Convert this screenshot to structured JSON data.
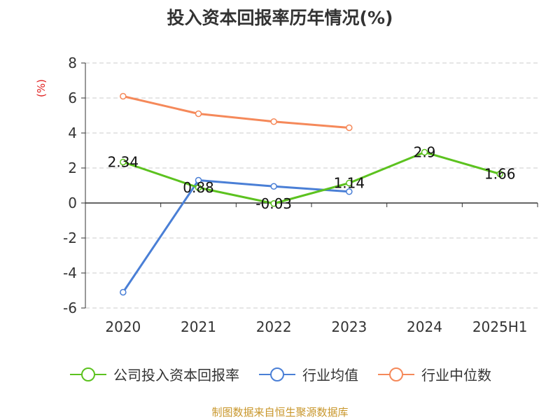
{
  "title": "投入资本回报率历年情况(%)",
  "source": "制图数据来自恒生聚源数据库",
  "colors": {
    "company": "#5cc21f",
    "industry_avg": "#4a7fd6",
    "industry_median": "#f5895a",
    "unit": "#e02020",
    "source": "#c8962a"
  },
  "chart_data": {
    "type": "line",
    "title": "投入资本回报率历年情况(%)",
    "ylabel": "(%)",
    "categories": [
      "2020",
      "2021",
      "2022",
      "2023",
      "2024",
      "2025H1"
    ],
    "ylim": [
      -6,
      8
    ],
    "yticks": [
      "8",
      "6",
      "4",
      "2",
      "0",
      "-2",
      "-4",
      "-6"
    ],
    "grid": true,
    "legend_position": "bottom",
    "series": [
      {
        "name": "公司投入资本回报率",
        "values": [
          2.34,
          0.88,
          -0.03,
          1.14,
          2.9,
          1.66
        ],
        "labels": [
          "2.34",
          "0.88",
          "-0.03",
          "1.14",
          "2.9",
          "1.66"
        ]
      },
      {
        "name": "行业均值",
        "values": [
          -5.1,
          1.3,
          0.95,
          0.65,
          null,
          null
        ]
      },
      {
        "name": "行业中位数",
        "values": [
          6.1,
          5.1,
          4.65,
          4.3,
          null,
          null
        ]
      }
    ]
  }
}
